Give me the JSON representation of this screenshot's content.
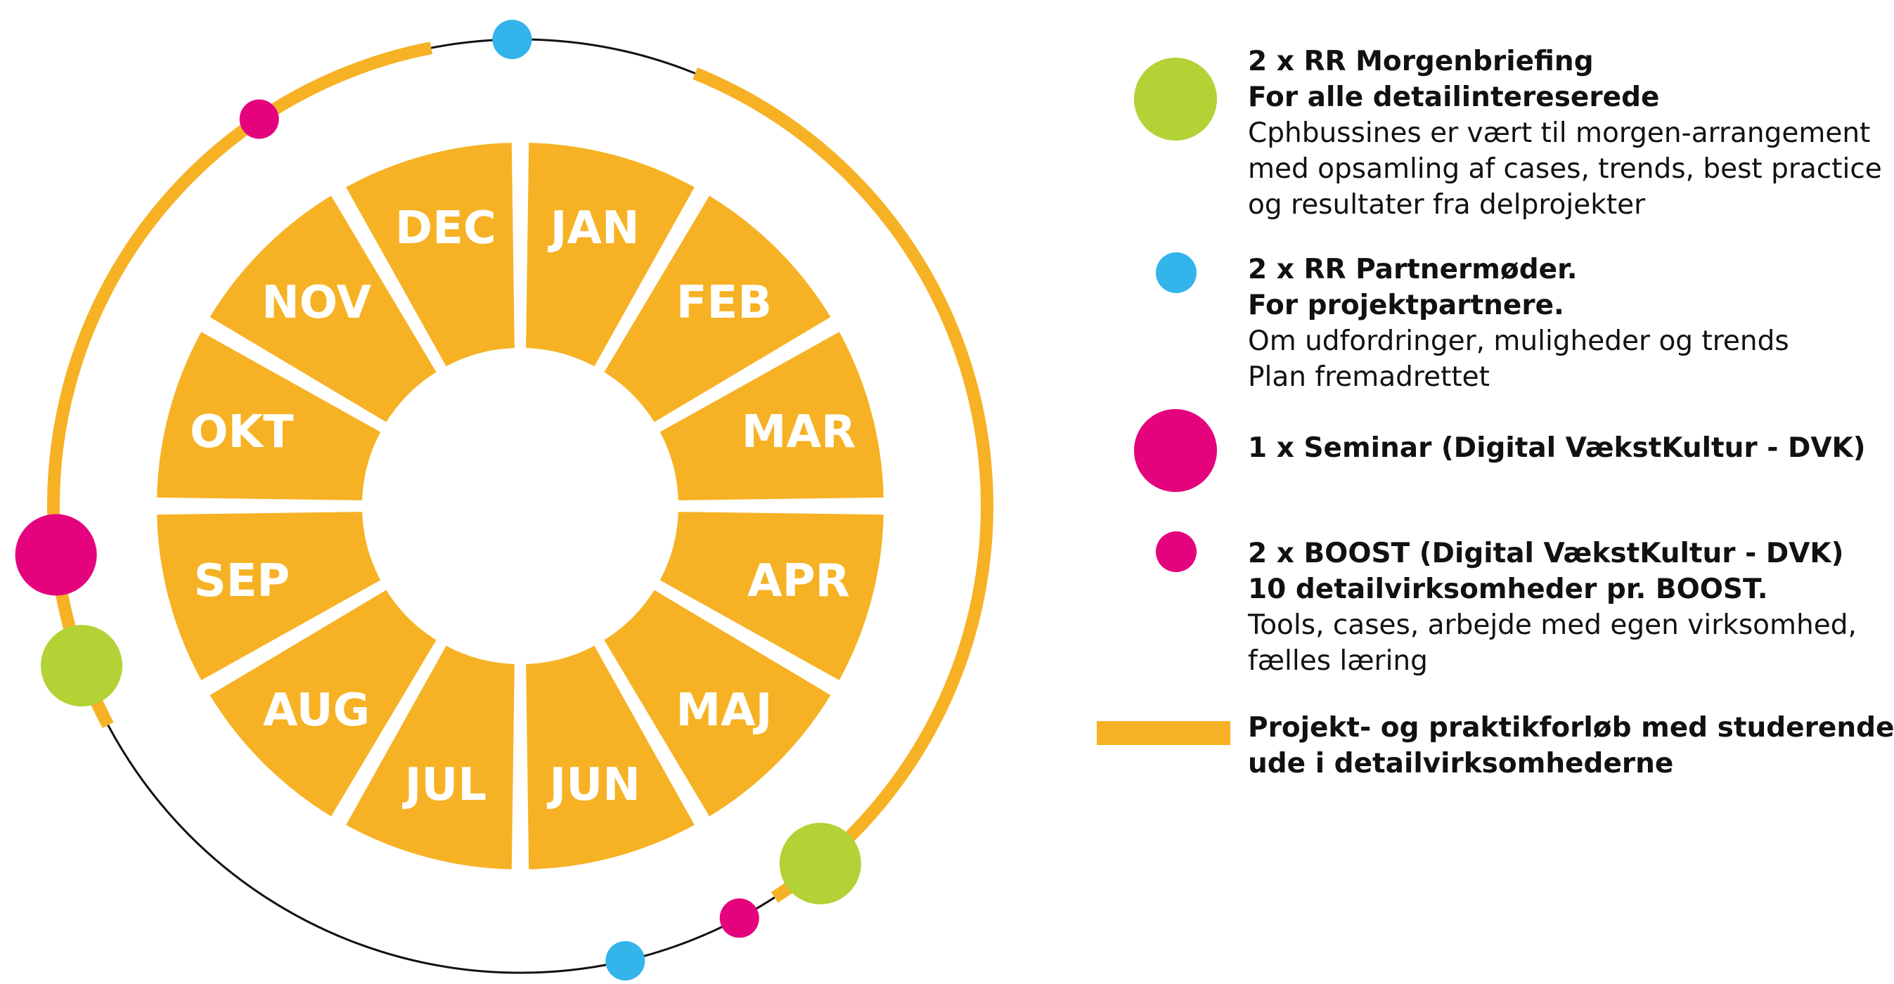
{
  "colors": {
    "orange": "#f6b224",
    "green": "#b2d235",
    "blue": "#33b4ea",
    "magenta": "#e4037d",
    "ring_line": "#111111"
  },
  "wheel": {
    "months": [
      "JAN",
      "FEB",
      "MAR",
      "APR",
      "MAJ",
      "JUN",
      "JUL",
      "AUG",
      "SEP",
      "OKT",
      "NOV",
      "DEC"
    ]
  },
  "legend": [
    {
      "marker": "green-circle-large",
      "color": "#b2d235",
      "bold_lines": [
        "2 x RR Morgenbriefing",
        "For alle detailintereserede"
      ],
      "normal_lines": [
        "Cphbussines er vært til morgen-arrangement",
        "med opsamling af cases, trends, best practice",
        "og resultater fra delprojekter"
      ]
    },
    {
      "marker": "blue-circle-small",
      "color": "#33b4ea",
      "bold_lines": [
        "2 x RR Partnermøder.",
        "For projektpartnere."
      ],
      "normal_lines": [
        "Om udfordringer, muligheder og  trends",
        "Plan fremadrettet"
      ]
    },
    {
      "marker": "magenta-circle-large",
      "color": "#e4037d",
      "bold_lines": [
        "1 x Seminar (Digital VækstKultur - DVK)"
      ],
      "normal_lines": []
    },
    {
      "marker": "magenta-circle-small",
      "color": "#e4037d",
      "bold_lines": [
        "2 x BOOST (Digital VækstKultur - DVK)",
        "10 detailvirksomheder pr. BOOST."
      ],
      "normal_lines": [
        "Tools, cases, arbejde med egen virksomhed,",
        "fælles læring"
      ]
    },
    {
      "marker": "orange-bar",
      "color": "#f6b224",
      "bold_lines": [
        "Projekt- og praktikforløb med studerende",
        "ude i detailvirksomhederne"
      ],
      "normal_lines": []
    }
  ]
}
